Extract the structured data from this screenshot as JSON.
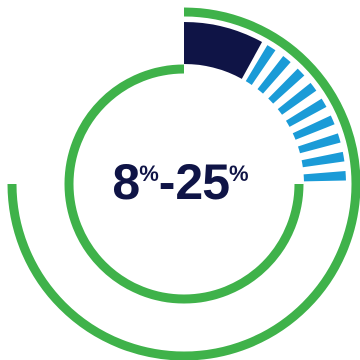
{
  "chart_data": {
    "type": "donut",
    "center_text": {
      "low_value": "8",
      "low_unit": "%",
      "separator": "-",
      "high_value": "25",
      "high_unit": "%"
    },
    "range_percent": [
      8,
      25
    ],
    "series": [
      {
        "value": 8,
        "color": "#0f1446"
      },
      {
        "value": 17,
        "color": "#1a9bd7"
      },
      {
        "value": 75,
        "color": "#3fb24a"
      }
    ],
    "range_band_style": "striped",
    "outer_arc_percent": 75
  },
  "colors": {
    "dark_navy": "#0f1446",
    "blue": "#1a9bd7",
    "green": "#3fb24a"
  }
}
